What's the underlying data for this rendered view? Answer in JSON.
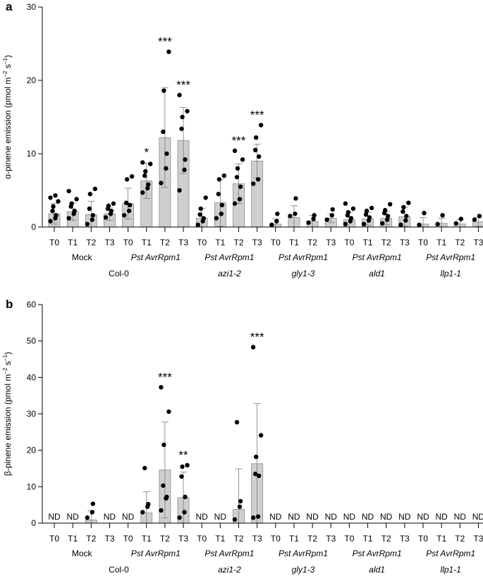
{
  "chart_data": [
    {
      "panel": "a",
      "type": "bar",
      "ylabel_prefix": "α-pinene emission (pmol m",
      "ylabel_sup1": "−2",
      "ylabel_mid": " s",
      "ylabel_sup2": "−1",
      "ylabel_suffix": ")",
      "ylim": [
        0,
        30
      ],
      "yticks": [
        "0",
        "10",
        "20",
        "30"
      ],
      "timepoints": [
        "T0",
        "T1",
        "T2",
        "T3"
      ],
      "treatments": [
        "Mock",
        "Pst AvrRpm1",
        "Pst AvrRpm1",
        "Pst AvrRpm1",
        "Pst AvrRpm1",
        "Pst AvrRpm1"
      ],
      "genotypes": [
        "Col-0",
        "azi1-2",
        "gly1-3",
        "ald1",
        "llp1-1"
      ],
      "groups": [
        {
          "bars": [
            {
              "mean": 1.8,
              "sd": 1.4,
              "pts": [
                0.8,
                1.2,
                1.6,
                2.2,
                2.8,
                3.5,
                4.0,
                4.3
              ]
            },
            {
              "mean": 2.1,
              "sd": 1.2,
              "pts": [
                1.2,
                1.8,
                2.2,
                2.8,
                3.2,
                3.8,
                4.9
              ]
            },
            {
              "mean": 1.7,
              "sd": 1.8,
              "pts": [
                0.4,
                1.0,
                1.6,
                2.5,
                4.5,
                5.2
              ]
            },
            {
              "mean": 1.8,
              "sd": 0.9,
              "pts": [
                1.3,
                1.8,
                2.2,
                2.5,
                2.9,
                3.2
              ]
            }
          ]
        },
        {
          "bars": [
            {
              "mean": 3.2,
              "sd": 2.1,
              "pts": [
                1.6,
                2.2,
                3.0,
                3.3,
                6.5,
                6.9
              ]
            },
            {
              "mean": 6.3,
              "sd": 2.4,
              "pts": [
                4.7,
                5.3,
                5.8,
                7.0,
                7.6,
                8.6,
                8.8
              ],
              "sig": "*"
            },
            {
              "mean": 12.2,
              "sd": 6.8,
              "pts": [
                6.0,
                8.0,
                10.0,
                13.0,
                18.6,
                23.9
              ],
              "sig": "***"
            },
            {
              "mean": 11.8,
              "sd": 4.5,
              "pts": [
                5.0,
                7.8,
                9.2,
                13.4,
                15.0,
                15.8,
                18.0
              ],
              "sig": "***"
            }
          ]
        },
        {
          "bars": [
            {
              "mean": 1.2,
              "sd": 1.3,
              "pts": [
                0.3,
                0.8,
                1.2,
                1.7,
                2.5,
                4.0
              ]
            },
            {
              "mean": 3.3,
              "sd": 3.2,
              "pts": [
                1.2,
                1.8,
                3.0,
                4.5,
                6.5,
                7.0
              ]
            },
            {
              "mean": 5.9,
              "sd": 2.7,
              "pts": [
                3.2,
                3.8,
                5.5,
                6.8,
                8.0,
                9.2,
                10.4
              ],
              "sig": "***"
            },
            {
              "mean": 9.0,
              "sd": 2.3,
              "pts": [
                5.9,
                6.5,
                9.6,
                10.5,
                12.2,
                13.9
              ],
              "sig": "***"
            }
          ]
        },
        {
          "bars": [
            {
              "mean": 0.4,
              "sd": 0.7,
              "pts": [
                0.3,
                0.8,
                1.8
              ]
            },
            {
              "mean": 1.3,
              "sd": 1.6,
              "pts": [
                1.5,
                1.8,
                3.9
              ]
            },
            {
              "mean": 0.8,
              "sd": 0.8,
              "pts": [
                0.6,
                1.1,
                1.6
              ]
            },
            {
              "mean": 1.2,
              "sd": 0.6,
              "pts": [
                1.0,
                1.6,
                2.4
              ]
            }
          ]
        },
        {
          "bars": [
            {
              "mean": 1.0,
              "sd": 1.0,
              "pts": [
                0.4,
                0.8,
                1.2,
                1.6,
                2.0,
                2.5,
                3.2
              ]
            },
            {
              "mean": 1.1,
              "sd": 0.9,
              "pts": [
                0.4,
                0.9,
                1.3,
                1.7,
                2.2,
                2.6
              ]
            },
            {
              "mean": 1.2,
              "sd": 0.9,
              "pts": [
                0.5,
                1.0,
                1.5,
                1.9,
                2.3,
                3.1
              ]
            },
            {
              "mean": 1.4,
              "sd": 1.3,
              "pts": [
                0.3,
                0.9,
                1.5,
                2.1,
                2.7,
                3.3
              ]
            }
          ]
        },
        {
          "bars": [
            {
              "mean": 0.4,
              "sd": 0.9,
              "pts": [
                0.3,
                1.9
              ]
            },
            {
              "mean": 0.5,
              "sd": 0.7,
              "pts": [
                0.4,
                1.6
              ]
            },
            {
              "mean": 0.4,
              "sd": 0.6,
              "pts": [
                0.5,
                1.1
              ]
            },
            {
              "mean": 0.7,
              "sd": 0.6,
              "pts": [
                1.0,
                1.5
              ]
            }
          ]
        }
      ]
    },
    {
      "panel": "b",
      "type": "bar",
      "ylabel_prefix": "β-pinene emission (pmol m",
      "ylabel_sup1": "−2",
      "ylabel_mid": " s",
      "ylabel_sup2": "−1",
      "ylabel_suffix": ")",
      "ylim": [
        0,
        60
      ],
      "yticks": [
        "0",
        "10",
        "20",
        "30",
        "40",
        "50",
        "60"
      ],
      "timepoints": [
        "T0",
        "T1",
        "T2",
        "T3"
      ],
      "treatments": [
        "Mock",
        "Pst AvrRpm1",
        "Pst AvrRpm1",
        "Pst AvrRpm1",
        "Pst AvrRpm1",
        "Pst AvrRpm1"
      ],
      "genotypes": [
        "Col-0",
        "azi1-2",
        "gly1-3",
        "ald1",
        "llp1-1"
      ],
      "nd_label": "ND",
      "groups": [
        {
          "bars": [
            {
              "nd": true
            },
            {
              "nd": true
            },
            {
              "mean": 0.9,
              "sd": 2.5,
              "pts": [
                1.5,
                3.0,
                5.3
              ]
            },
            {
              "nd": true
            }
          ]
        },
        {
          "bars": [
            {
              "nd": true
            },
            {
              "mean": 2.8,
              "sd": 5.8,
              "pts": [
                3.0,
                4.5,
                5.2,
                15.1
              ]
            },
            {
              "mean": 14.6,
              "sd": 13.2,
              "pts": [
                3.5,
                6.8,
                7.2,
                10.3,
                21.5,
                30.6,
                37.3
              ],
              "sig": "***"
            },
            {
              "mean": 7.0,
              "sd": 7.0,
              "pts": [
                1.5,
                3.0,
                7.2,
                12.8,
                15.5,
                15.9
              ],
              "sig": "**"
            }
          ]
        },
        {
          "bars": [
            {
              "nd": true
            },
            {
              "nd": true
            },
            {
              "mean": 3.8,
              "sd": 11.1,
              "pts": [
                1.0,
                4.5,
                6.0,
                27.7
              ]
            },
            {
              "mean": 16.3,
              "sd": 16.5,
              "pts": [
                1.5,
                1.8,
                13.0,
                13.5,
                18.2,
                24.1,
                48.3
              ],
              "sig": "***"
            }
          ]
        },
        {
          "bars": [
            {
              "nd": true
            },
            {
              "nd": true
            },
            {
              "nd": true
            },
            {
              "nd": true
            }
          ]
        },
        {
          "bars": [
            {
              "nd": true
            },
            {
              "nd": true
            },
            {
              "nd": true
            },
            {
              "nd": true
            }
          ]
        },
        {
          "bars": [
            {
              "nd": true
            },
            {
              "nd": true
            },
            {
              "nd": true
            },
            {
              "nd": true
            }
          ]
        }
      ]
    }
  ]
}
